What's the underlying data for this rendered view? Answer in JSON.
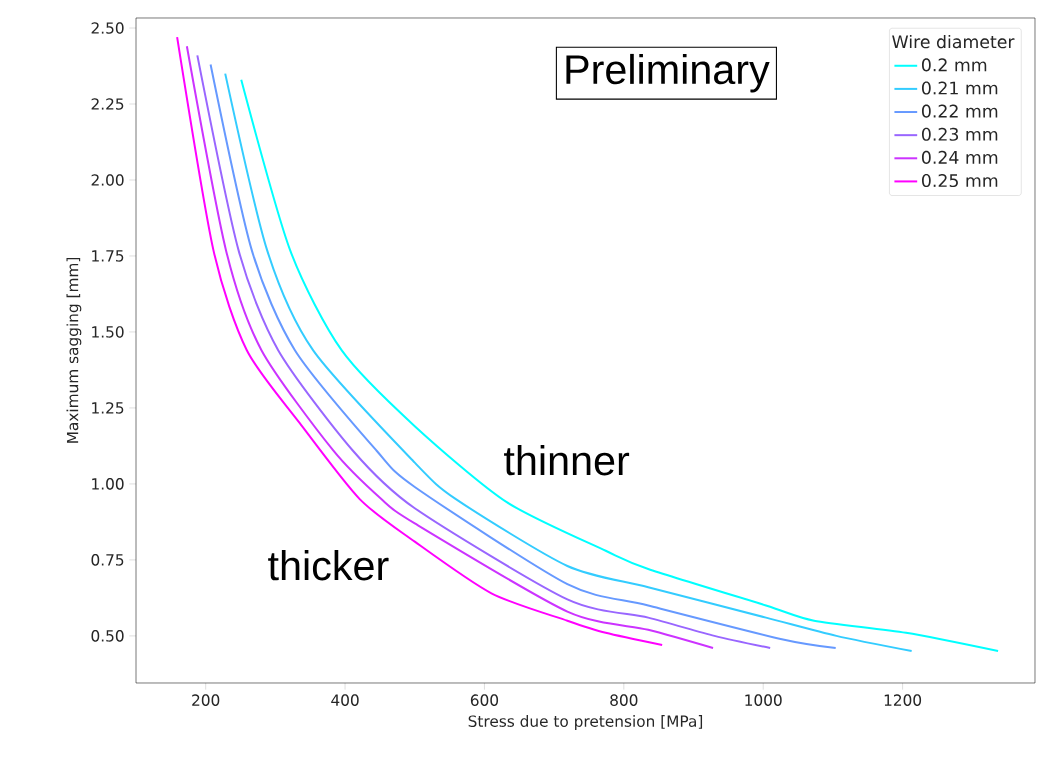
{
  "chart_data": {
    "type": "line",
    "xlabel": "Stress due to pretension [MPa]",
    "ylabel": "Maximum sagging [mm]",
    "legend_title": "Wire diameter",
    "legend": "top right",
    "grid": false,
    "marker": "none",
    "line_style": "solid",
    "xlim": [
      100,
      1390
    ],
    "ylim": [
      0.345,
      2.533
    ],
    "xticks": [
      200,
      400,
      600,
      800,
      1000,
      1200
    ],
    "yticks": [
      {
        "value": 0.5,
        "label": "0.50"
      },
      {
        "value": 0.75,
        "label": "0.75"
      },
      {
        "value": 1.0,
        "label": "1.00"
      },
      {
        "value": 1.25,
        "label": "1.25"
      },
      {
        "value": 1.5,
        "label": "1.50"
      },
      {
        "value": 1.75,
        "label": "1.75"
      },
      {
        "value": 2.0,
        "label": "2.00"
      },
      {
        "value": 2.25,
        "label": "2.25"
      },
      {
        "value": 2.5,
        "label": "2.50"
      }
    ],
    "annotations": [
      "Preliminary",
      "thinner",
      "thicker"
    ],
    "series": [
      {
        "name": "0.2 mm",
        "color": "#00ffff",
        "x": [
          251,
          321,
          395,
          500,
          632,
          774,
          835,
          1004,
          1073,
          1205,
          1337
        ],
        "values": [
          2.33,
          1.77,
          1.44,
          1.19,
          0.94,
          0.78,
          0.72,
          0.6,
          0.55,
          0.51,
          0.45
        ]
      },
      {
        "name": "0.21 mm",
        "color": "#33ccff",
        "x": [
          228,
          288,
          354,
          500,
          559,
          719,
          835,
          1004,
          1105,
          1213
        ],
        "values": [
          2.35,
          1.77,
          1.44,
          1.07,
          0.95,
          0.73,
          0.66,
          0.56,
          0.5,
          0.45
        ]
      },
      {
        "name": "0.22 mm",
        "color": "#6699ff",
        "x": [
          207,
          266,
          328,
          445,
          500,
          719,
          835,
          1025,
          1104
        ],
        "values": [
          2.38,
          1.77,
          1.44,
          1.11,
          0.99,
          0.67,
          0.6,
          0.49,
          0.46
        ]
      },
      {
        "name": "0.23 mm",
        "color": "#9966ff",
        "x": [
          188,
          247,
          304,
          411,
          500,
          719,
          835,
          930,
          1010
        ],
        "values": [
          2.41,
          1.77,
          1.44,
          1.11,
          0.92,
          0.62,
          0.56,
          0.5,
          0.46
        ]
      },
      {
        "name": "0.24 mm",
        "color": "#cc33ff",
        "x": [
          173,
          229,
          280,
          383,
          452,
          500,
          719,
          835,
          928
        ],
        "values": [
          2.44,
          1.77,
          1.44,
          1.11,
          0.95,
          0.87,
          0.58,
          0.52,
          0.46
        ]
      },
      {
        "name": "0.25 mm",
        "color": "#ff00ff",
        "x": [
          159,
          211,
          259,
          335,
          421,
          500,
          610,
          719,
          774,
          855
        ],
        "values": [
          2.47,
          1.77,
          1.44,
          1.2,
          0.95,
          0.81,
          0.64,
          0.55,
          0.51,
          0.47
        ]
      }
    ]
  }
}
